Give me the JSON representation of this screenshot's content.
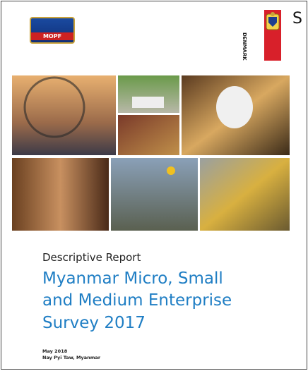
{
  "logos": {
    "left": "MOPF",
    "right": "DENMARK"
  },
  "corner_text": "S",
  "report_type": "Descriptive Report",
  "title_lines": [
    "Myanmar Micro, Small",
    "and Medium Enterprise",
    "Survey 2017"
  ],
  "date": "May 2018",
  "place": "Nay Pyi Taw, Myanmar"
}
